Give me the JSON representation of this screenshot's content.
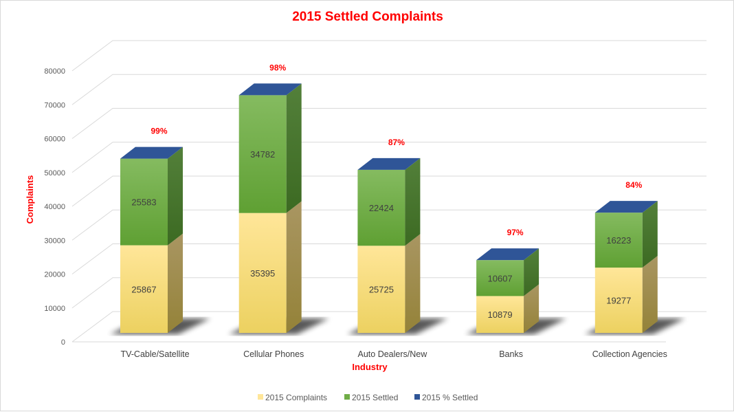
{
  "chart_data": {
    "type": "bar",
    "stacked": true,
    "three_d": true,
    "title": "2015 Settled Complaints",
    "xlabel": "Industry",
    "ylabel": "Complaints",
    "ylim": [
      0,
      80000
    ],
    "yticks": [
      0,
      10000,
      20000,
      30000,
      40000,
      50000,
      60000,
      70000,
      80000
    ],
    "grid": true,
    "legend_position": "bottom",
    "categories": [
      "TV-Cable/Satellite",
      "Cellular Phones",
      "Auto Dealers/New",
      "Banks",
      "Collection Agencies"
    ],
    "series": [
      {
        "name": "2015 Complaints",
        "color": "#ffe699",
        "values": [
          25867,
          35395,
          25725,
          10879,
          19277
        ]
      },
      {
        "name": "2015 Settled",
        "color": "#70ad47",
        "values": [
          25583,
          34782,
          22424,
          10607,
          16223
        ]
      },
      {
        "name": "2015 % Settled",
        "color": "#2f5597",
        "values": [
          "99%",
          "98%",
          "87%",
          "97%",
          "84%"
        ]
      }
    ]
  }
}
